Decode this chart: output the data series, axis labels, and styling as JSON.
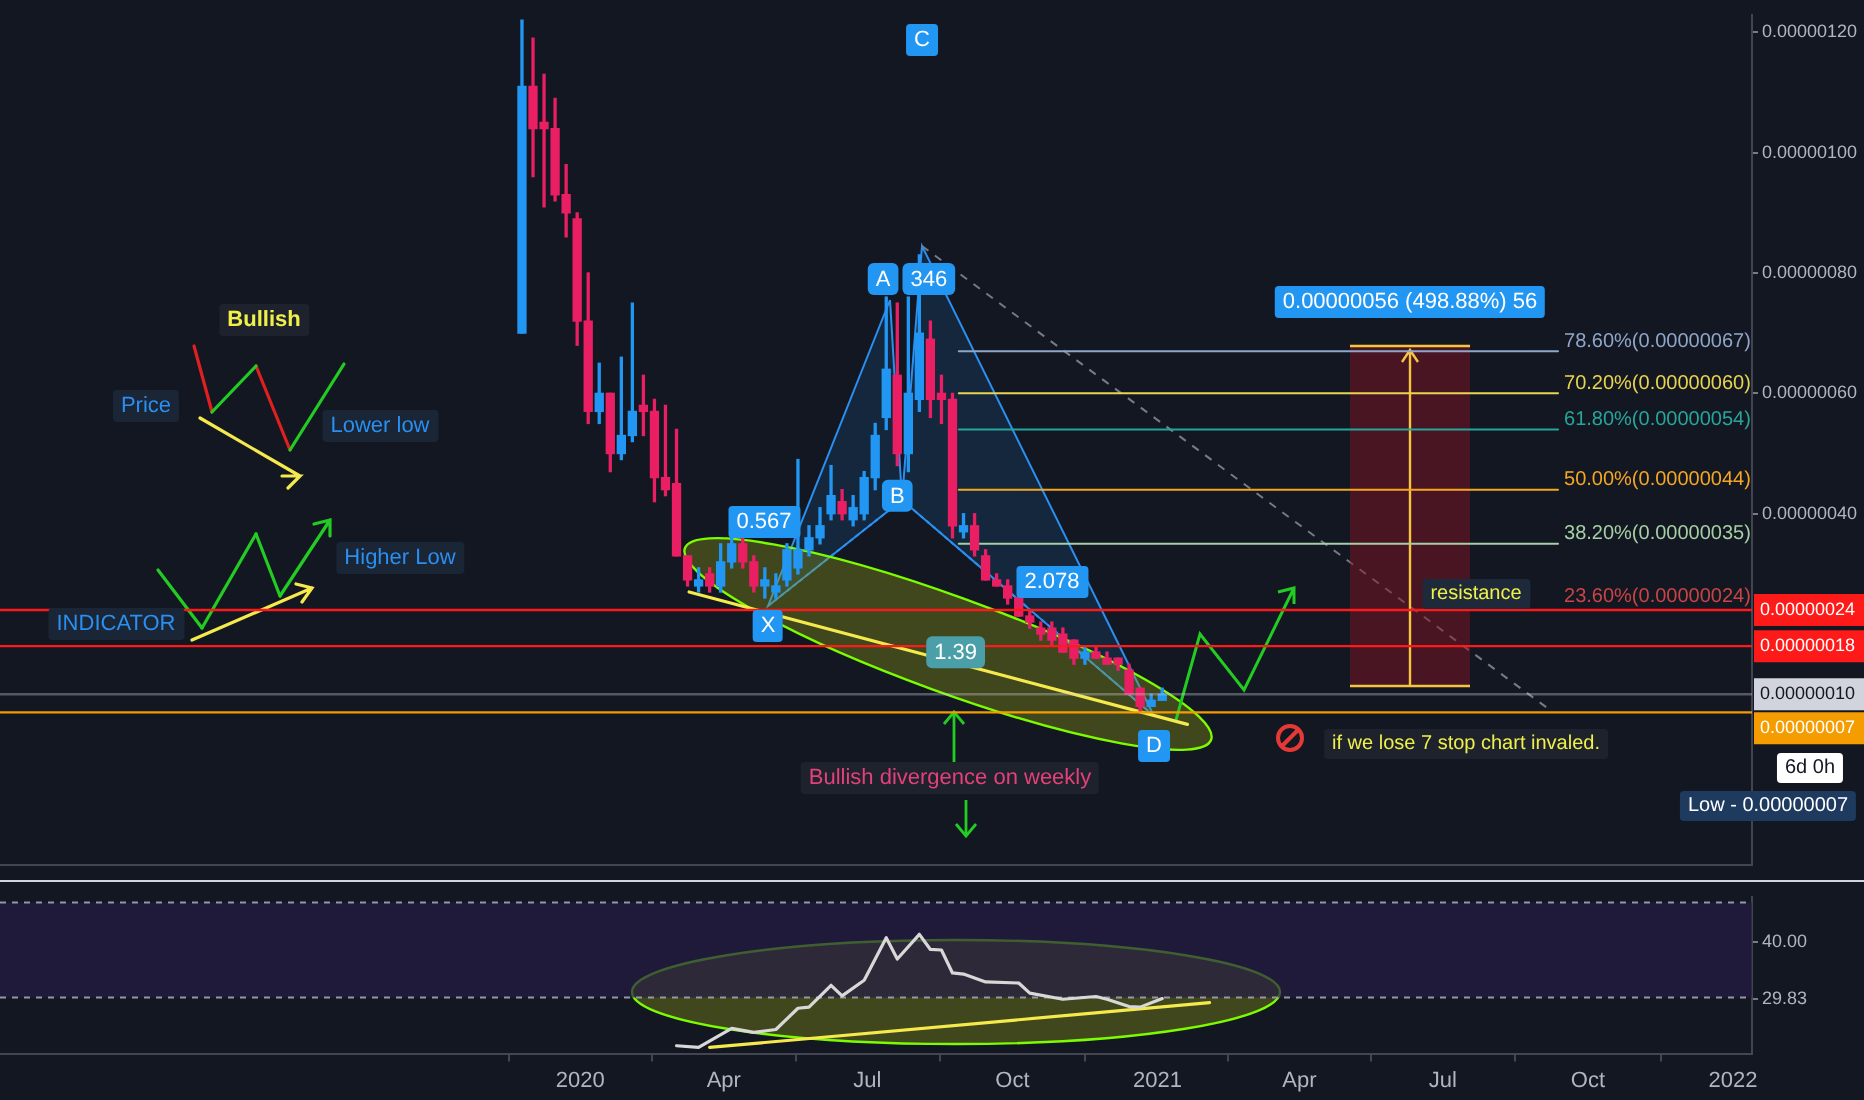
{
  "chart_data": [
    {
      "type": "candlestick",
      "tick_labels": "y",
      "xlim": [
        "2018-12-29",
        "2022-01-13"
      ],
      "ylim": [
        -1.84e-07,
        1.229e-06
      ],
      "yticks": [
        {
          "value": 4e-07,
          "label": "0.00000040"
        },
        {
          "value": 6e-07,
          "label": "0.00000060"
        },
        {
          "value": 8e-07,
          "label": "0.00000080"
        },
        {
          "value": 1e-06,
          "label": "0.00000100"
        },
        {
          "value": 1.2e-06,
          "label": "0.00000120"
        }
      ],
      "series": [
        {
          "x": [
            "2019-11-25",
            "2019-12-02",
            "2019-12-09",
            "2019-12-16",
            "2019-12-23",
            "2019-12-30",
            "2020-01-06",
            "2020-01-13",
            "2020-01-20",
            "2020-01-27",
            "2020-02-03",
            "2020-02-10",
            "2020-02-17",
            "2020-02-24",
            "2020-03-02",
            "2020-03-09",
            "2020-03-16",
            "2020-03-23",
            "2020-03-30",
            "2020-04-06",
            "2020-04-13",
            "2020-04-20",
            "2020-04-27",
            "2020-05-04",
            "2020-05-11",
            "2020-05-18",
            "2020-05-25",
            "2020-06-01",
            "2020-06-08",
            "2020-06-15",
            "2020-06-22",
            "2020-06-29",
            "2020-07-06",
            "2020-07-13",
            "2020-07-20",
            "2020-07-27",
            "2020-08-03",
            "2020-08-10",
            "2020-08-17",
            "2020-08-24",
            "2020-08-31",
            "2020-09-07",
            "2020-09-14",
            "2020-09-21",
            "2020-09-28",
            "2020-10-05",
            "2020-10-12",
            "2020-10-19",
            "2020-10-26",
            "2020-11-02",
            "2020-11-09",
            "2020-11-16",
            "2020-11-23",
            "2020-11-30",
            "2020-12-07",
            "2020-12-14",
            "2020-12-21",
            "2020-12-28",
            "2021-01-04"
          ],
          "ohlc": [
            [
              7e-07,
              1.22e-06,
              7e-07,
              1.11e-06
            ],
            [
              1.11e-06,
              1.19e-06,
              9.6e-07,
              1.04e-06
            ],
            [
              1.05e-06,
              1.13e-06,
              9.1e-07,
              1.04e-06
            ],
            [
              1.04e-06,
              1.09e-06,
              9.2e-07,
              9.3e-07
            ],
            [
              9.3e-07,
              9.8e-07,
              8.6e-07,
              9e-07
            ],
            [
              8.9e-07,
              9e-07,
              6.8e-07,
              7.2e-07
            ],
            [
              7.2e-07,
              8e-07,
              5.5e-07,
              5.7e-07
            ],
            [
              5.7e-07,
              6.5e-07,
              5.5e-07,
              6e-07
            ],
            [
              6e-07,
              6e-07,
              4.7e-07,
              5e-07
            ],
            [
              5e-07,
              6.6e-07,
              4.9e-07,
              5.3e-07
            ],
            [
              5.3e-07,
              7.5e-07,
              5.2e-07,
              5.7e-07
            ],
            [
              5.8e-07,
              6.3e-07,
              5.3e-07,
              5.7e-07
            ],
            [
              5.7e-07,
              5.9e-07,
              4.2e-07,
              4.6e-07
            ],
            [
              4.6e-07,
              5.8e-07,
              4.3e-07,
              4.4e-07
            ],
            [
              4.5e-07,
              5.4e-07,
              3.3e-07,
              3.3e-07
            ],
            [
              3.3e-07,
              3.3e-07,
              2.8e-07,
              2.9e-07
            ],
            [
              2.8e-07,
              3.1e-07,
              2.7e-07,
              2.9e-07
            ],
            [
              3e-07,
              3.1e-07,
              2.7e-07,
              2.8e-07
            ],
            [
              2.8e-07,
              3.5e-07,
              2.7e-07,
              3.2e-07
            ],
            [
              3.2e-07,
              3.7e-07,
              3.1e-07,
              3.5e-07
            ],
            [
              3.5e-07,
              3.6e-07,
              3.1e-07,
              3.2e-07
            ],
            [
              3.2e-07,
              3.3e-07,
              2.7e-07,
              2.8e-07
            ],
            [
              2.8e-07,
              3.1e-07,
              2.6e-07,
              2.9e-07
            ],
            [
              2.7e-07,
              3e-07,
              2.6e-07,
              2.8e-07
            ],
            [
              2.9e-07,
              3.5e-07,
              2.8e-07,
              3.4e-07
            ],
            [
              3.1e-07,
              4.9e-07,
              3e-07,
              3.4e-07
            ],
            [
              3.4e-07,
              3.8e-07,
              3.3e-07,
              3.6e-07
            ],
            [
              3.6e-07,
              4.1e-07,
              3.5e-07,
              3.8e-07
            ],
            [
              4e-07,
              4.8e-07,
              3.9e-07,
              4.3e-07
            ],
            [
              4.2e-07,
              4.4e-07,
              3.9e-07,
              4e-07
            ],
            [
              3.9e-07,
              4.3e-07,
              3.8e-07,
              4.1e-07
            ],
            [
              4e-07,
              4.7e-07,
              3.9e-07,
              4.6e-07
            ],
            [
              4.6e-07,
              5.5e-07,
              4.4e-07,
              5.3e-07
            ],
            [
              5.6e-07,
              7.6e-07,
              5.4e-07,
              6.4e-07
            ],
            [
              6.3e-07,
              7.5e-07,
              4.8e-07,
              5e-07
            ],
            [
              5e-07,
              7.6e-07,
              4.7e-07,
              6e-07
            ],
            [
              5.9e-07,
              8.3e-07,
              5.7e-07,
              7e-07
            ],
            [
              6.9e-07,
              7.2e-07,
              5.6e-07,
              5.9e-07
            ],
            [
              6e-07,
              6.3e-07,
              5.5e-07,
              5.9e-07
            ],
            [
              5.9e-07,
              6e-07,
              3.6e-07,
              3.8e-07
            ],
            [
              3.7e-07,
              4e-07,
              3.6e-07,
              3.8e-07
            ],
            [
              3.8e-07,
              4e-07,
              3.3e-07,
              3.4e-07
            ],
            [
              3.3e-07,
              3.4e-07,
              2.9e-07,
              2.9e-07
            ],
            [
              2.9e-07,
              3e-07,
              2.8e-07,
              2.8e-07
            ],
            [
              2.8e-07,
              2.9e-07,
              2.5e-07,
              2.6e-07
            ],
            [
              2.6e-07,
              2.7e-07,
              2.3e-07,
              2.3e-07
            ],
            [
              2.3e-07,
              2.4e-07,
              2.1e-07,
              2.2e-07
            ],
            [
              2.1e-07,
              2.2e-07,
              1.9e-07,
              2e-07
            ],
            [
              2.1e-07,
              2.2e-07,
              1.8e-07,
              1.9e-07
            ],
            [
              2e-07,
              2.1e-07,
              1.7e-07,
              1.7e-07
            ],
            [
              1.9e-07,
              1.9e-07,
              1.5e-07,
              1.6e-07
            ],
            [
              1.6e-07,
              1.8e-07,
              1.5e-07,
              1.7e-07
            ],
            [
              1.7e-07,
              1.8e-07,
              1.6e-07,
              1.6e-07
            ],
            [
              1.6e-07,
              1.7e-07,
              1.5e-07,
              1.5e-07
            ],
            [
              1.6e-07,
              1.6e-07,
              1.4e-07,
              1.5e-07
            ],
            [
              1.4e-07,
              1.5e-07,
              1e-07,
              1e-07
            ],
            [
              1.1e-07,
              1.1e-07,
              7e-08,
              8e-08
            ],
            [
              8e-08,
              1e-07,
              8e-08,
              9e-08
            ],
            [
              9e-08,
              1.1e-07,
              9e-08,
              1e-07
            ]
          ],
          "colors": [
            "#2196f3",
            "#e91e63",
            "#e91e63",
            "#e91e63",
            "#e91e63",
            "#e91e63",
            "#e91e63",
            "#2196f3",
            "#e91e63",
            "#2196f3",
            "#2196f3",
            "#e91e63",
            "#e91e63",
            "#e91e63",
            "#e91e63",
            "#e91e63",
            "#2196f3",
            "#e91e63",
            "#2196f3",
            "#2196f3",
            "#e91e63",
            "#e91e63",
            "#2196f3",
            "#2196f3",
            "#2196f3",
            "#2196f3",
            "#2196f3",
            "#2196f3",
            "#2196f3",
            "#e91e63",
            "#2196f3",
            "#2196f3",
            "#2196f3",
            "#2196f3",
            "#e91e63",
            "#2196f3",
            "#2196f3",
            "#e91e63",
            "#e91e63",
            "#e91e63",
            "#2196f3",
            "#e91e63",
            "#e91e63",
            "#e91e63",
            "#e91e63",
            "#e91e63",
            "#e91e63",
            "#e91e63",
            "#e91e63",
            "#e91e63",
            "#e91e63",
            "#2196f3",
            "#e91e63",
            "#e91e63",
            "#e91e63",
            "#e91e63",
            "#e91e63",
            "#2196f3",
            "#2196f3"
          ]
        },
        {
          "type": "line",
          "x": [
            "2020-03-10",
            "2021-01-20"
          ],
          "values": [
            2.7e-07,
            5e-08
          ],
          "color": "#f5e94c"
        },
        {
          "type": "line",
          "name": "78.60%(0.00000067)",
          "x": [
            "2020-08-28",
            "2021-09-12"
          ],
          "values": [
            6.7e-07,
            6.7e-07
          ],
          "color": "#8fa6c9"
        },
        {
          "type": "line",
          "name": "70.20%(0.00000060)",
          "x": [
            "2020-08-28",
            "2021-09-12"
          ],
          "values": [
            6e-07,
            6e-07
          ],
          "color": "#e8d44d"
        },
        {
          "type": "line",
          "name": "61.80%(0.00000054)",
          "x": [
            "2020-08-28",
            "2021-09-12"
          ],
          "values": [
            5.4e-07,
            5.4e-07
          ],
          "color": "#26a69a"
        },
        {
          "type": "line",
          "name": "50.00%(0.00000044)",
          "x": [
            "2020-08-28",
            "2021-09-12"
          ],
          "values": [
            4.4e-07,
            4.4e-07
          ],
          "color": "#f5a623"
        },
        {
          "type": "line",
          "name": "38.20%(0.00000035)",
          "x": [
            "2020-08-28",
            "2021-09-12"
          ],
          "values": [
            3.5e-07,
            3.5e-07
          ],
          "color": "#a5cfa5"
        }
      ],
      "ref_lines": [
        {
          "axis": "y",
          "value": 2.4e-07,
          "label": "0.00000024",
          "color": "#ff1a1a"
        },
        {
          "axis": "y",
          "value": 1.8e-07,
          "label": "0.00000018",
          "color": "#ff1a1a"
        },
        {
          "axis": "y",
          "value": 1e-07,
          "label": "0.00000010",
          "color": "#d1d4dc"
        },
        {
          "axis": "y",
          "value": 7e-08,
          "label": "0.00000007",
          "color": "#f59c00"
        }
      ],
      "annotations": [
        {
          "text": "A",
          "x": "2020-07-11",
          "y": 7.9e-07
        },
        {
          "text": "346",
          "x": "2020-08-09",
          "y": 7.9e-07
        },
        {
          "text": "B",
          "x": "2020-07-20",
          "y": 4.3e-07
        },
        {
          "text": "1.39",
          "x": "2020-08-26",
          "y": 1.7e-07
        },
        {
          "text": "23.60%(0.00000024)",
          "x": "2021-09-12",
          "y": 2.4e-07
        },
        "X",
        "C",
        "D",
        "0.567",
        "2.078",
        "Bullish",
        "Price",
        "Lower low",
        "Higher Low",
        "INDICATOR",
        "Bullish divergence on weekly",
        "0.00000056 (498.88%) 56",
        "resistance",
        "if we lose 7 stop chart invaled.",
        "6d 0h",
        "Low - 0.00000007"
      ]
    },
    {
      "type": "line",
      "xlim": [
        "2018-12-29",
        "2022-01-13"
      ],
      "ylim": [
        20,
        48
      ],
      "xticks": [
        {
          "value": "2020-01-01",
          "label": "2020"
        },
        {
          "value": "2020-04-01",
          "label": "Apr"
        },
        {
          "value": "2020-07-01",
          "label": "Jul"
        },
        {
          "value": "2020-10-01",
          "label": "Oct"
        },
        {
          "value": "2021-01-01",
          "label": "2021"
        },
        {
          "value": "2021-04-01",
          "label": "Apr"
        },
        {
          "value": "2021-07-01",
          "label": "Jul"
        },
        {
          "value": "2021-10-01",
          "label": "Oct"
        },
        {
          "value": "2022-01-01",
          "label": "2022"
        }
      ],
      "yticks": [
        {
          "value": 40,
          "label": "40.00"
        },
        29.83
      ],
      "bands": [
        {
          "axis": "y",
          "from": 30,
          "to": 47,
          "color": "#251d45"
        }
      ],
      "series": [
        {
          "x": [
            "2020-03-02",
            "2020-03-16",
            "2020-04-06",
            "2020-04-20",
            "2020-05-04",
            "2020-05-18",
            "2020-05-25",
            "2020-06-08",
            "2020-06-15",
            "2020-06-29",
            "2020-07-13",
            "2020-07-20",
            "2020-08-03",
            "2020-08-10",
            "2020-08-17",
            "2020-08-24",
            "2020-08-31",
            "2020-09-14",
            "2020-10-05",
            "2020-10-12",
            "2020-11-02",
            "2020-11-23",
            "2020-11-30",
            "2020-12-14",
            "2020-12-21",
            "2021-01-04"
          ],
          "values": [
            21.4,
            21.1,
            24.5,
            23.8,
            24.3,
            28.1,
            28.3,
            32.2,
            30.3,
            33.1,
            40.7,
            36.9,
            41.3,
            38.6,
            38.5,
            34.4,
            34.2,
            32.8,
            32.6,
            30.8,
            29.7,
            30.2,
            29.7,
            28.4,
            28.3,
            29.83
          ],
          "color": "#d8d8d8"
        },
        {
          "type": "line",
          "x": [
            "2020-03-23",
            "2021-02-03"
          ],
          "values": [
            21.1,
            29.1
          ],
          "color": "#f5e94c"
        }
      ]
    }
  ]
}
